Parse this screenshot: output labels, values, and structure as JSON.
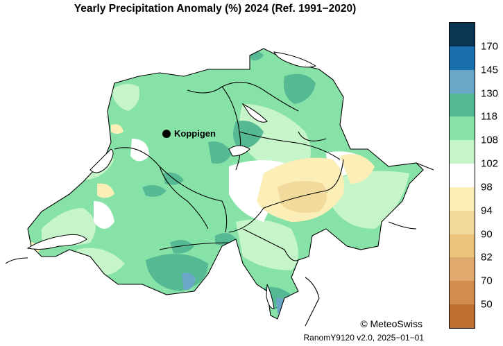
{
  "title": "Yearly Precipitation Anomaly (%) 2024  (Ref. 1991−2020)",
  "city": {
    "name": "Koppigen"
  },
  "legend": {
    "labels": [
      "170",
      "145",
      "130",
      "118",
      "108",
      "102",
      "98",
      "94",
      "90",
      "82",
      "70",
      "50"
    ],
    "colors": [
      "#0a3553",
      "#1a6fae",
      "#6aa6c8",
      "#55b993",
      "#86e2a7",
      "#c5f5c8",
      "#ffffff",
      "#fbefb7",
      "#f1da9b",
      "#ecc57d",
      "#dfaa6b",
      "#d28d4e",
      "#bf6f2f"
    ]
  },
  "copyright": "© MeteoSwiss",
  "version": "RanomY9120 v2.0, 2025−01−01"
}
